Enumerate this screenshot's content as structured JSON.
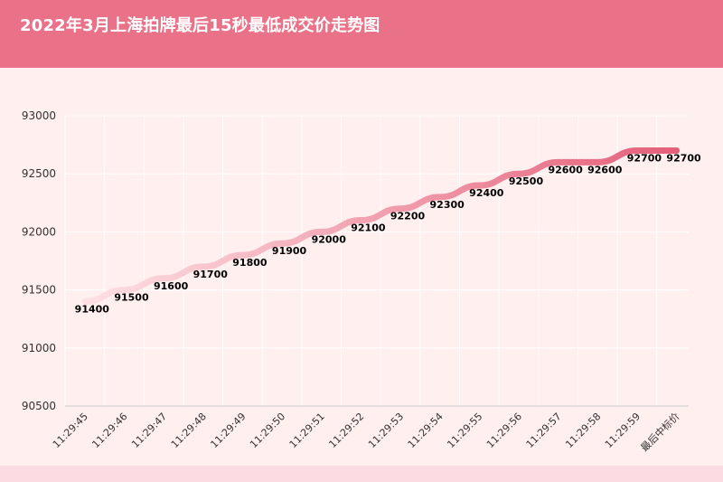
{
  "title": "2022年3月上海拍牌最后15秒最低成交价走势图",
  "colors": {
    "header": "#ea7288",
    "background": "#ffefef",
    "line_start": "#fde0e4",
    "line_end": "#e55f7a"
  },
  "chart_data": {
    "type": "line",
    "title": "2022年3月上海拍牌最后15秒最低成交价走势图",
    "xlabel": "",
    "ylabel": "",
    "categories": [
      "11:29:45",
      "11:29:46",
      "11:29:47",
      "11:29:48",
      "11:29:49",
      "11:29:50",
      "11:29:51",
      "11:29:52",
      "11:29:53",
      "11:29:54",
      "11:29:55",
      "11:29:56",
      "11:29:57",
      "11:29:58",
      "11:29:59",
      "最后中标价"
    ],
    "values": [
      91400,
      91500,
      91600,
      91700,
      91800,
      91900,
      92000,
      92100,
      92200,
      92300,
      92400,
      92500,
      92600,
      92600,
      92700,
      92700
    ],
    "data_labels": [
      "91400",
      "91500",
      "91600",
      "91700",
      "91800",
      "91900",
      "92000",
      "92100",
      "92200",
      "92300",
      "92400",
      "92500",
      "92600",
      "92600",
      "92700",
      "92700"
    ],
    "ylim": [
      90500,
      93000
    ],
    "yticks": [
      "90500",
      "91000",
      "91500",
      "92000",
      "92500",
      "93000"
    ],
    "grid": true,
    "legend": "none"
  }
}
